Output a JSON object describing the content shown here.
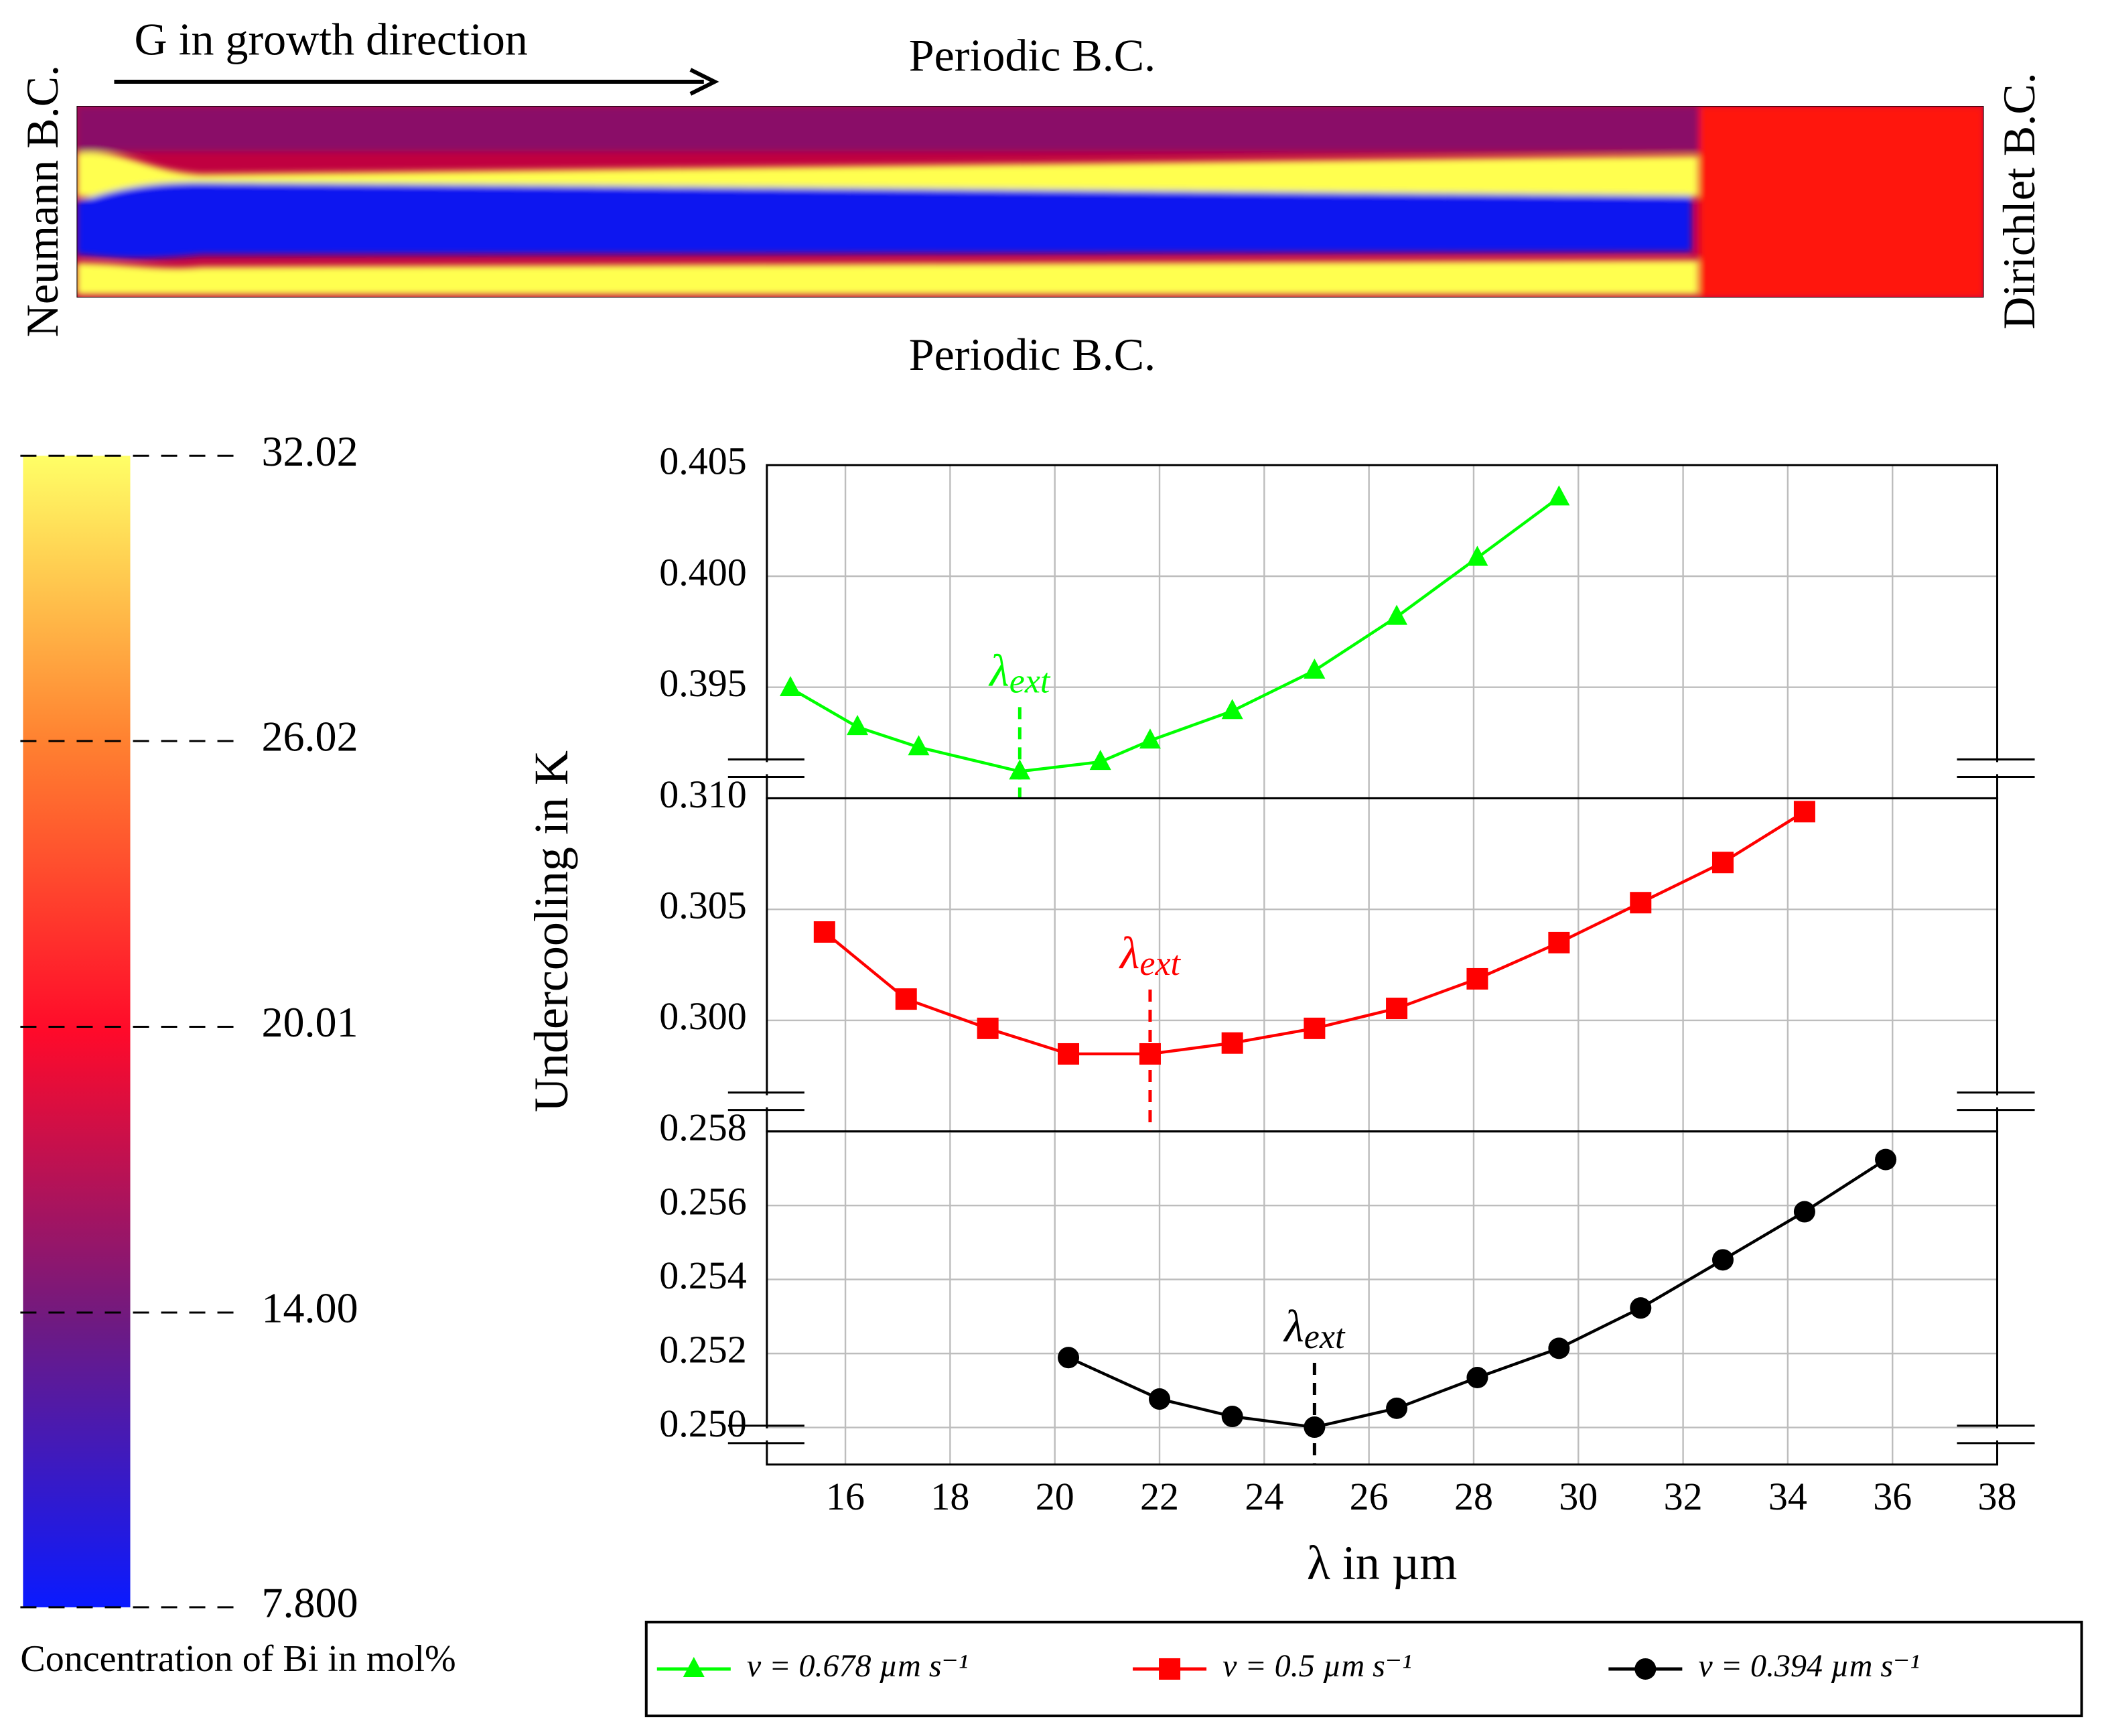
{
  "simulation": {
    "arrow_label": "G in growth direction",
    "top": "Periodic B.C.",
    "bottom": "Periodic B.C.",
    "left": "Neumann B.C.",
    "right": "Dirichlet B.C."
  },
  "colorbar": {
    "label": "Concentration of Bi in mol%",
    "lim": [
      7.8,
      32.02
    ],
    "ticks": [
      32.02,
      26.02,
      20.01,
      {
        "value": 14,
        "label": "14.00"
      },
      {
        "value": 7.8,
        "label": "7.800"
      }
    ]
  },
  "chart_data": [
    {
      "type": "line",
      "xlim": [
        14.5,
        38
      ],
      "xticks": [
        16,
        18,
        20,
        22,
        24,
        26,
        28,
        30,
        32,
        34,
        36,
        38
      ],
      "ylim": [
        0.39,
        0.405
      ],
      "yticks": [
        0.405,
        {
          "value": 0.4,
          "label": "0.400"
        },
        0.395
      ],
      "grid": true,
      "x": [
        14.95,
        16.23,
        17.4,
        19.33,
        20.87,
        21.82,
        23.39,
        24.96,
        26.53,
        28.07,
        29.63
      ],
      "series": [
        {
          "name": "v = 0.678 µm s⁻¹",
          "color": "#00ff00",
          "marker": "triangle",
          "values": [
            0.39496,
            0.39321,
            0.3923,
            0.39121,
            0.39164,
            0.3926,
            0.39393,
            0.39575,
            0.39817,
            0.40083,
            0.40355
          ]
        }
      ],
      "annotation": {
        "label": "λ",
        "sub": "ext",
        "x": 19.33
      }
    },
    {
      "type": "line",
      "xlim": [
        14.5,
        38
      ],
      "xticks": [
        16,
        18,
        20,
        22,
        24,
        26,
        28,
        30,
        32,
        34,
        36,
        38
      ],
      "ylim": [
        0.295,
        0.31
      ],
      "yticks": [
        {
          "value": 0.31,
          "label": "0.310"
        },
        0.305,
        {
          "value": 0.3,
          "label": "0.300"
        }
      ],
      "grid": true,
      "ylabel": "Undercooling in K",
      "x": [
        15.6,
        17.16,
        18.72,
        20.26,
        21.82,
        23.39,
        24.96,
        26.53,
        28.07,
        29.63,
        31.19,
        32.76,
        34.32
      ],
      "series": [
        {
          "name": "v = 0.5 µm s⁻¹",
          "color": "#ff0000",
          "marker": "square",
          "values": [
            0.30398,
            0.30096,
            0.29964,
            0.29849,
            0.29849,
            0.29898,
            0.29964,
            0.30054,
            0.30187,
            0.3035,
            0.3053,
            0.30711,
            0.3094
          ]
        }
      ],
      "annotation": {
        "label": "λ",
        "sub": "ext",
        "x": 21.82
      }
    },
    {
      "type": "line",
      "xlim": [
        14.5,
        38
      ],
      "xticks": [
        16,
        18,
        20,
        22,
        24,
        26,
        28,
        30,
        32,
        34,
        36,
        38
      ],
      "ylim": [
        0.249,
        0.258
      ],
      "yticks": [
        0.258,
        0.256,
        0.254,
        0.252,
        {
          "value": 0.25,
          "label": "0.250"
        }
      ],
      "grid": true,
      "xlabel": "λ in µm",
      "x": [
        20.26,
        22.0,
        23.39,
        24.96,
        26.53,
        28.07,
        29.63,
        31.19,
        32.76,
        34.32,
        35.87
      ],
      "series": [
        {
          "name": "v = 0.394 µm s⁻¹",
          "color": "#000000",
          "marker": "circle",
          "values": [
            0.25189,
            0.25077,
            0.2503,
            0.25001,
            0.25052,
            0.25135,
            0.25214,
            0.25323,
            0.25453,
            0.25583,
            0.25724
          ]
        }
      ],
      "annotation": {
        "label": "λ",
        "sub": "ext",
        "x": 24.96
      }
    }
  ]
}
